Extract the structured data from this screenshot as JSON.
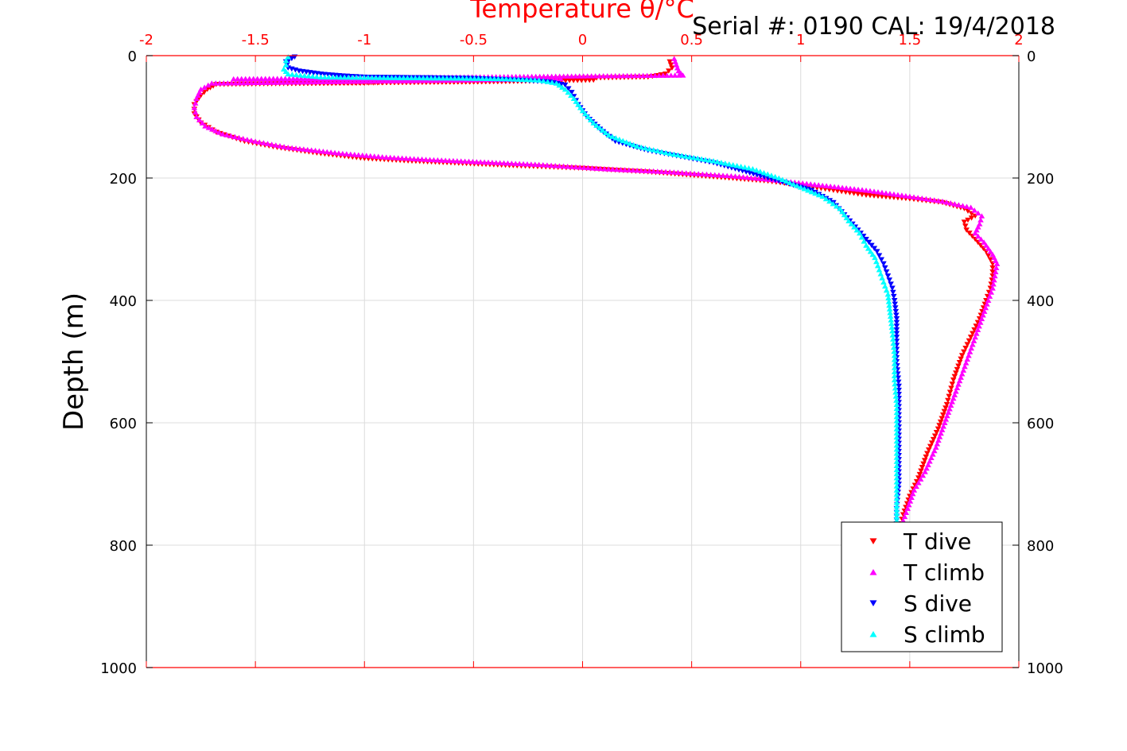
{
  "chart_data": {
    "type": "scatter",
    "title": "Temperature θ/°C",
    "top_right_text": "Serial #: 0190  CAL: 19/4/2018",
    "xlabel": "Temperature θ/°C",
    "ylabel": "Depth (m)",
    "xlim": [
      -2,
      2
    ],
    "ylim": [
      0,
      1000
    ],
    "y_reversed": true,
    "x_axis_position": "top",
    "x_ticks": [
      -2,
      -1.5,
      -1,
      -0.5,
      0,
      0.5,
      1,
      1.5,
      2
    ],
    "x_tick_labels": [
      "-2",
      "-1.5",
      "-1",
      "-0.5",
      "0",
      "0.5",
      "1",
      "1.5",
      "2"
    ],
    "y_ticks": [
      0,
      200,
      400,
      600,
      800,
      1000
    ],
    "y_tick_labels": [
      "0",
      "200",
      "400",
      "600",
      "800",
      "1000"
    ],
    "grid": true,
    "legend_position": "bottom-right",
    "colors": {
      "axis": "#ff0000",
      "text": "#000000",
      "grid": "#dcdcdc"
    },
    "series": [
      {
        "name": "T dive",
        "marker": "triangle-down",
        "color": "#ff0000",
        "points": [
          [
            0.4,
            10
          ],
          [
            0.41,
            20
          ],
          [
            0.38,
            30
          ],
          [
            0.3,
            35
          ],
          [
            -1.35,
            45
          ],
          [
            -1.0,
            45
          ],
          [
            -0.9,
            44
          ],
          [
            -0.5,
            43
          ],
          [
            0.05,
            40
          ],
          [
            -1.68,
            47
          ],
          [
            -1.72,
            55
          ],
          [
            -1.75,
            65
          ],
          [
            -1.78,
            80
          ],
          [
            -1.78,
            95
          ],
          [
            -1.75,
            110
          ],
          [
            -1.68,
            125
          ],
          [
            -1.55,
            140
          ],
          [
            -1.4,
            150
          ],
          [
            -1.2,
            160
          ],
          [
            -1.0,
            168
          ],
          [
            -0.8,
            172
          ],
          [
            -0.55,
            176
          ],
          [
            -0.3,
            180
          ],
          [
            0.0,
            184
          ],
          [
            0.3,
            190
          ],
          [
            0.6,
            198
          ],
          [
            0.85,
            205
          ],
          [
            1.0,
            212
          ],
          [
            1.15,
            220
          ],
          [
            1.3,
            228
          ],
          [
            1.5,
            234
          ],
          [
            1.65,
            240
          ],
          [
            1.75,
            250
          ],
          [
            1.8,
            262
          ],
          [
            1.75,
            272
          ],
          [
            1.76,
            285
          ],
          [
            1.8,
            300
          ],
          [
            1.85,
            320
          ],
          [
            1.88,
            340
          ],
          [
            1.88,
            360
          ],
          [
            1.87,
            380
          ],
          [
            1.85,
            400
          ],
          [
            1.82,
            430
          ],
          [
            1.78,
            460
          ],
          [
            1.74,
            490
          ],
          [
            1.7,
            530
          ],
          [
            1.67,
            570
          ],
          [
            1.63,
            610
          ],
          [
            1.58,
            650
          ],
          [
            1.54,
            690
          ],
          [
            1.5,
            720
          ],
          [
            1.47,
            750
          ],
          [
            1.46,
            765
          ]
        ]
      },
      {
        "name": "T climb",
        "marker": "triangle-up",
        "color": "#ff00ff",
        "points": [
          [
            0.42,
            5
          ],
          [
            0.43,
            15
          ],
          [
            0.44,
            25
          ],
          [
            0.46,
            32
          ],
          [
            -1.6,
            38
          ],
          [
            -1.4,
            38
          ],
          [
            -1.2,
            38
          ],
          [
            -0.1,
            38
          ],
          [
            -1.7,
            45
          ],
          [
            -1.75,
            55
          ],
          [
            -1.77,
            70
          ],
          [
            -1.78,
            85
          ],
          [
            -1.77,
            100
          ],
          [
            -1.73,
            115
          ],
          [
            -1.65,
            128
          ],
          [
            -1.5,
            140
          ],
          [
            -1.35,
            150
          ],
          [
            -1.1,
            160
          ],
          [
            -0.9,
            166
          ],
          [
            -0.7,
            170
          ],
          [
            -0.45,
            174
          ],
          [
            -0.2,
            178
          ],
          [
            0.1,
            185
          ],
          [
            0.4,
            190
          ],
          [
            0.7,
            197
          ],
          [
            0.9,
            204
          ],
          [
            1.1,
            212
          ],
          [
            1.3,
            220
          ],
          [
            1.5,
            230
          ],
          [
            1.65,
            238
          ],
          [
            1.78,
            248
          ],
          [
            1.83,
            262
          ],
          [
            1.82,
            275
          ],
          [
            1.8,
            290
          ],
          [
            1.84,
            305
          ],
          [
            1.88,
            325
          ],
          [
            1.9,
            340
          ],
          [
            1.89,
            360
          ],
          [
            1.88,
            380
          ],
          [
            1.86,
            400
          ],
          [
            1.83,
            430
          ],
          [
            1.8,
            460
          ],
          [
            1.77,
            490
          ],
          [
            1.74,
            520
          ],
          [
            1.7,
            560
          ],
          [
            1.66,
            600
          ],
          [
            1.62,
            640
          ],
          [
            1.57,
            680
          ],
          [
            1.52,
            710
          ],
          [
            1.49,
            740
          ],
          [
            1.47,
            760
          ]
        ]
      },
      {
        "name": "S dive",
        "marker": "triangle-down",
        "color": "#0000ff",
        "points": [
          [
            -1.32,
            2
          ],
          [
            -1.36,
            10
          ],
          [
            -1.35,
            20
          ],
          [
            -1.3,
            25
          ],
          [
            -1.2,
            30
          ],
          [
            -1.1,
            33
          ],
          [
            -1.0,
            35
          ],
          [
            -0.7,
            36
          ],
          [
            -0.5,
            37
          ],
          [
            -0.3,
            40
          ],
          [
            -0.15,
            43
          ],
          [
            -0.08,
            48
          ],
          [
            -0.05,
            60
          ],
          [
            -0.02,
            80
          ],
          [
            0.02,
            100
          ],
          [
            0.08,
            120
          ],
          [
            0.15,
            140
          ],
          [
            0.3,
            155
          ],
          [
            0.45,
            165
          ],
          [
            0.6,
            175
          ],
          [
            0.75,
            190
          ],
          [
            0.9,
            205
          ],
          [
            1.05,
            220
          ],
          [
            1.15,
            240
          ],
          [
            1.2,
            260
          ],
          [
            1.25,
            280
          ],
          [
            1.3,
            300
          ],
          [
            1.35,
            320
          ],
          [
            1.38,
            340
          ],
          [
            1.4,
            360
          ],
          [
            1.42,
            380
          ],
          [
            1.43,
            400
          ],
          [
            1.44,
            430
          ],
          [
            1.44,
            460
          ],
          [
            1.44,
            500
          ],
          [
            1.45,
            540
          ],
          [
            1.45,
            580
          ],
          [
            1.45,
            620
          ],
          [
            1.45,
            660
          ],
          [
            1.45,
            700
          ],
          [
            1.44,
            740
          ],
          [
            1.44,
            765
          ]
        ]
      },
      {
        "name": "S climb",
        "marker": "triangle-up",
        "color": "#00ffff",
        "points": [
          [
            -1.35,
            2
          ],
          [
            -1.36,
            8
          ],
          [
            -1.36,
            15
          ],
          [
            -1.37,
            22
          ],
          [
            -1.35,
            30
          ],
          [
            -1.2,
            35
          ],
          [
            -0.55,
            37
          ],
          [
            -0.35,
            38
          ],
          [
            -0.2,
            40
          ],
          [
            -0.12,
            45
          ],
          [
            -0.08,
            55
          ],
          [
            -0.04,
            70
          ],
          [
            0.0,
            90
          ],
          [
            0.05,
            110
          ],
          [
            0.12,
            130
          ],
          [
            0.25,
            148
          ],
          [
            0.4,
            160
          ],
          [
            0.6,
            172
          ],
          [
            0.78,
            185
          ],
          [
            0.9,
            200
          ],
          [
            1.0,
            215
          ],
          [
            1.1,
            230
          ],
          [
            1.18,
            250
          ],
          [
            1.22,
            270
          ],
          [
            1.27,
            290
          ],
          [
            1.3,
            310
          ],
          [
            1.34,
            330
          ],
          [
            1.36,
            350
          ],
          [
            1.38,
            370
          ],
          [
            1.4,
            390
          ],
          [
            1.41,
            420
          ],
          [
            1.42,
            450
          ],
          [
            1.43,
            490
          ],
          [
            1.43,
            530
          ],
          [
            1.44,
            570
          ],
          [
            1.44,
            610
          ],
          [
            1.44,
            650
          ],
          [
            1.44,
            690
          ],
          [
            1.44,
            730
          ],
          [
            1.44,
            760
          ]
        ]
      }
    ]
  }
}
